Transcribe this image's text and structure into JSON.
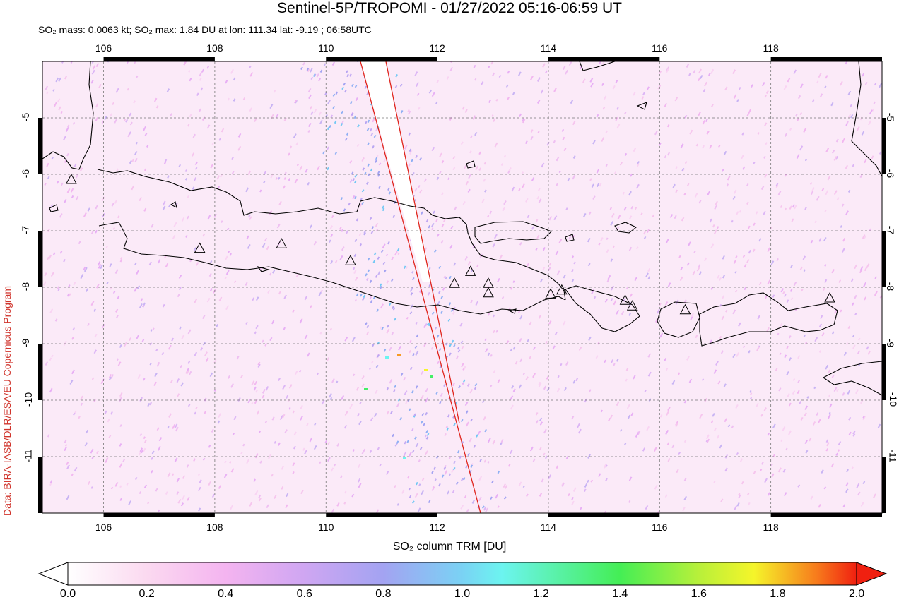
{
  "header": {
    "title": "Sentinel-5P/TROPOMI - 01/27/2022 05:16-06:59 UT",
    "stats_prefix": "SO",
    "stats_line": "SO₂ mass: 0.0063 kt; SO₂ max: 1.84 DU at lon: 111.34 lat: -9.19 ; 06:58UTC"
  },
  "credit": "Data: BIRA-IASB/DLR/ESA/EU Copernicus Program",
  "axis": {
    "x_ticks": [
      "106",
      "108",
      "110",
      "112",
      "114",
      "116",
      "118"
    ],
    "y_ticks": [
      "-5",
      "-6",
      "-7",
      "-8",
      "-9",
      "-10",
      "-11"
    ],
    "x_label": "SO₂ column TRM [DU]"
  },
  "map": {
    "lon_range": [
      104.9,
      120.0
    ],
    "lat_range": [
      -12.0,
      -4.0
    ],
    "grid": "dashed",
    "volcanoes": [
      {
        "lon": 107.73,
        "lat": -7.32
      },
      {
        "lon": 109.2,
        "lat": -7.24
      },
      {
        "lon": 110.44,
        "lat": -7.54
      },
      {
        "lon": 112.31,
        "lat": -7.94
      },
      {
        "lon": 112.6,
        "lat": -7.73
      },
      {
        "lon": 112.92,
        "lat": -7.94
      },
      {
        "lon": 112.92,
        "lat": -8.11
      },
      {
        "lon": 114.04,
        "lat": -8.13
      },
      {
        "lon": 114.24,
        "lat": -8.06
      },
      {
        "lon": 115.38,
        "lat": -8.24
      },
      {
        "lon": 115.51,
        "lat": -8.34
      },
      {
        "lon": 116.46,
        "lat": -8.41
      },
      {
        "lon": 119.06,
        "lat": -8.2
      },
      {
        "lon": 105.42,
        "lat": -6.1
      }
    ],
    "swath_colors": {
      "edge": "#e0241c"
    }
  },
  "colorbar": {
    "ticks": [
      "0.0",
      "0.2",
      "0.4",
      "0.6",
      "0.8",
      "1.0",
      "1.2",
      "1.4",
      "1.6",
      "1.8",
      "2.0"
    ],
    "colors": [
      "#ffffff",
      "#fbd2ee",
      "#e6a6f3",
      "#a3a3f2",
      "#72c8f4",
      "#6cf4f0",
      "#44ee66",
      "#a5f03c",
      "#f5f52a",
      "#f79a22",
      "#f02010"
    ]
  }
}
